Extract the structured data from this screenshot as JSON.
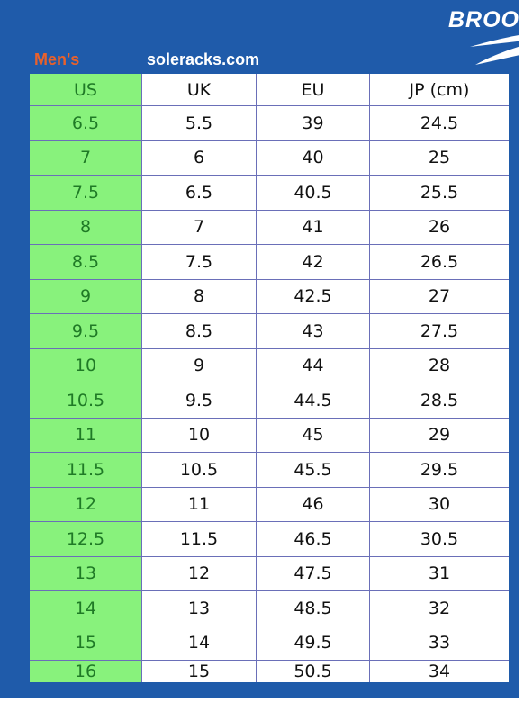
{
  "header": {
    "brand": "BROO",
    "category": "Men's",
    "site": "soleracks.com"
  },
  "colors": {
    "background": "#1f5baa",
    "us_column": "#88f27c",
    "us_text": "#1f7a26",
    "category_text": "#e8612c"
  },
  "table": {
    "headers": [
      "US",
      "UK",
      "EU",
      "JP (cm)"
    ],
    "rows": [
      [
        "6.5",
        "5.5",
        "39",
        "24.5"
      ],
      [
        "7",
        "6",
        "40",
        "25"
      ],
      [
        "7.5",
        "6.5",
        "40.5",
        "25.5"
      ],
      [
        "8",
        "7",
        "41",
        "26"
      ],
      [
        "8.5",
        "7.5",
        "42",
        "26.5"
      ],
      [
        "9",
        "8",
        "42.5",
        "27"
      ],
      [
        "9.5",
        "8.5",
        "43",
        "27.5"
      ],
      [
        "10",
        "9",
        "44",
        "28"
      ],
      [
        "10.5",
        "9.5",
        "44.5",
        "28.5"
      ],
      [
        "11",
        "10",
        "45",
        "29"
      ],
      [
        "11.5",
        "10.5",
        "45.5",
        "29.5"
      ],
      [
        "12",
        "11",
        "46",
        "30"
      ],
      [
        "12.5",
        "11.5",
        "46.5",
        "30.5"
      ],
      [
        "13",
        "12",
        "47.5",
        "31"
      ],
      [
        "14",
        "13",
        "48.5",
        "32"
      ],
      [
        "15",
        "14",
        "49.5",
        "33"
      ],
      [
        "16",
        "15",
        "50.5",
        "34"
      ]
    ]
  }
}
